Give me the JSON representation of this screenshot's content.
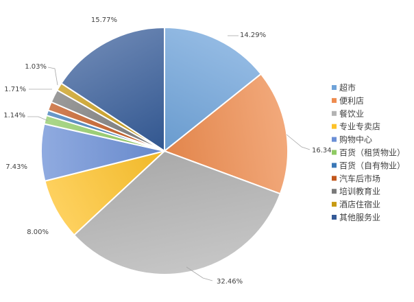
{
  "chart_data": {
    "type": "pie",
    "title": "",
    "series": [
      {
        "name": "超市",
        "value": 14.29,
        "label": "14.29%",
        "color": "#6fa3d9"
      },
      {
        "name": "便利店",
        "value": 16.34,
        "label": "16.34",
        "color": "#ee8c4f"
      },
      {
        "name": "餐饮业",
        "value": 32.46,
        "label": "32.46%",
        "color": "#b3b3b3"
      },
      {
        "name": "专业专卖店",
        "value": 8.0,
        "label": "8.00%",
        "color": "#fdc22a"
      },
      {
        "name": "购物中心",
        "value": 7.43,
        "label": "7.43%",
        "color": "#6b8fd6"
      },
      {
        "name": "百货（租赁物业）",
        "value": 1.14,
        "label": "1.14%",
        "color": "#8fca63"
      },
      {
        "name": "百货（自有物业）",
        "value": 0.69,
        "label": "",
        "color": "#3a78b7"
      },
      {
        "name": "汽车后市场",
        "value": 1.14,
        "label": "",
        "color": "#c2571d"
      },
      {
        "name": "培训教育业",
        "value": 1.71,
        "label": "1.71%",
        "color": "#7a7a7a"
      },
      {
        "name": "酒店住宿业",
        "value": 1.03,
        "label": "1.03%",
        "color": "#c79a13"
      },
      {
        "name": "其他服务业",
        "value": 15.77,
        "label": "15.77%",
        "color": "#345a97"
      }
    ],
    "legend_position": "right"
  }
}
